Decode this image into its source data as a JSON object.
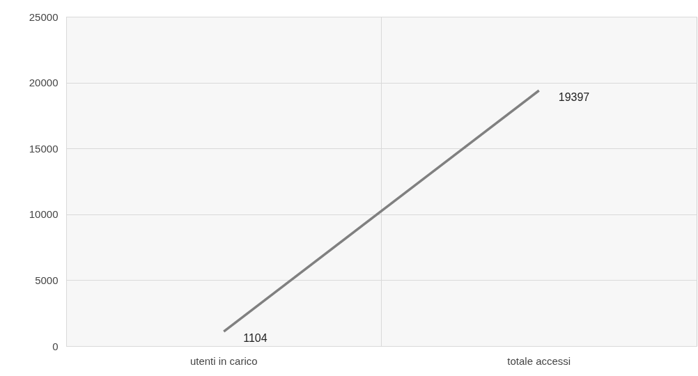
{
  "chart_data": {
    "type": "line",
    "categories": [
      "utenti in carico",
      "totale accessi"
    ],
    "series": [
      {
        "color": "#808080",
        "values": [
          1104,
          19397
        ]
      }
    ],
    "ylim": [
      0,
      25000
    ],
    "yticks": [
      0,
      5000,
      10000,
      15000,
      20000,
      25000
    ],
    "grid": true,
    "data_labels": true,
    "legend": false,
    "marker": "none",
    "line_style": "solid"
  }
}
